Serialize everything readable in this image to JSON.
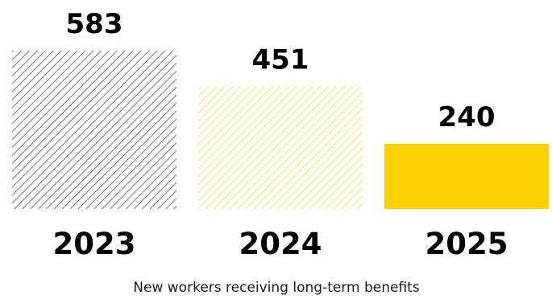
{
  "chart_data": {
    "type": "bar",
    "categories": [
      "2023",
      "2024",
      "2025"
    ],
    "values": [
      583,
      451,
      240
    ],
    "title": "",
    "caption": "New workers receiving long-term benefits",
    "xlabel": "",
    "ylabel": "",
    "ylim": [
      0,
      583
    ],
    "grid": false,
    "legend": "none",
    "bar_styles": [
      "hatched",
      "hatched",
      "solid"
    ],
    "colors": {
      "bar_2023": "#555555",
      "bar_2024": "#f7d637",
      "bar_2025": "#fdd000",
      "text": "#000000"
    }
  }
}
